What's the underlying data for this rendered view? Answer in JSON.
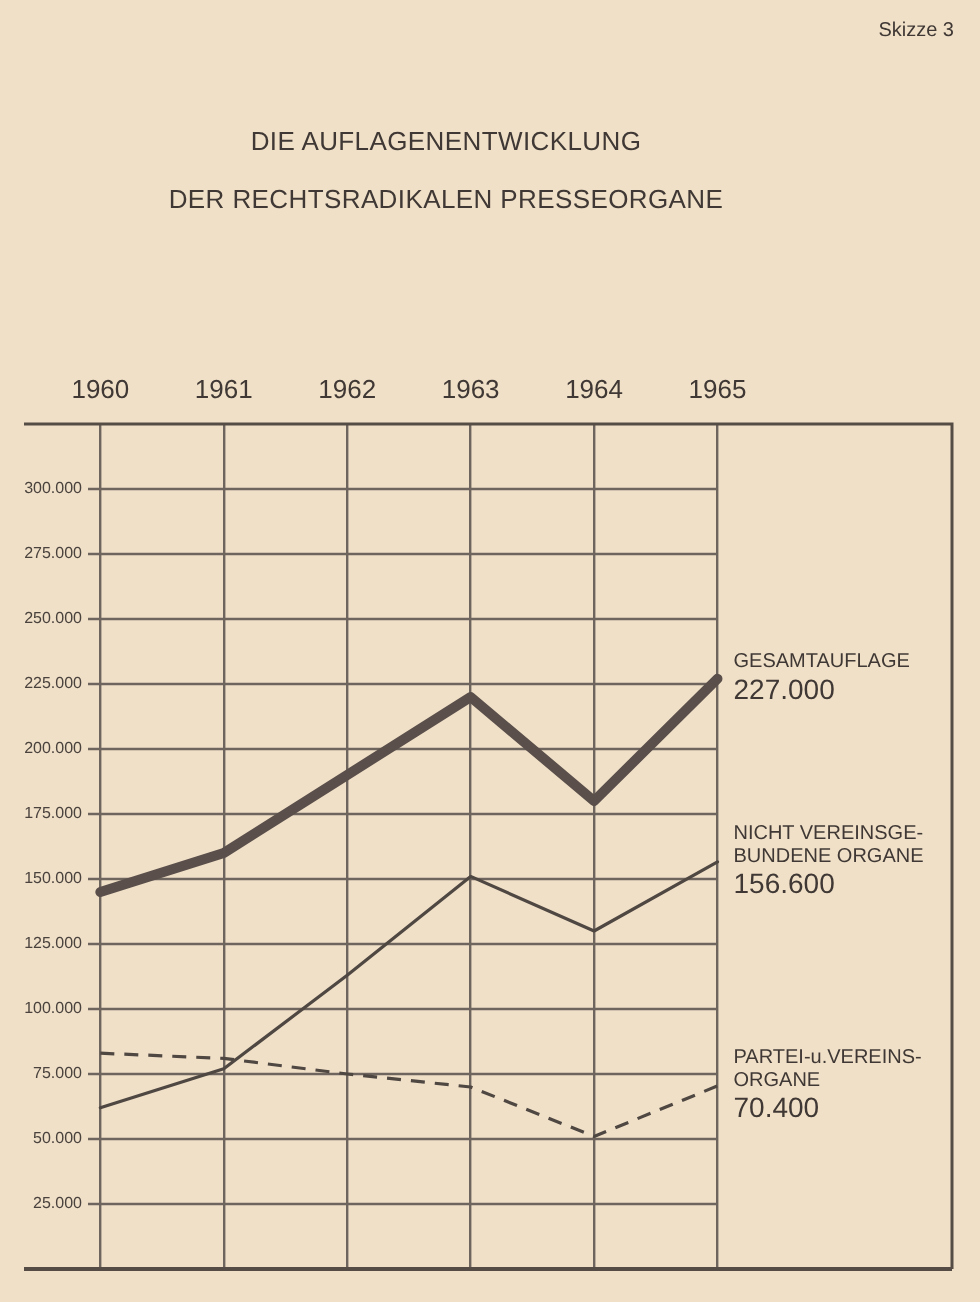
{
  "chart_data": {
    "type": "line",
    "title": "DIE AUFLAGENENTWICKLUNG",
    "subtitle": "DER RECHTSRADIKALEN PRESSEORGANE",
    "annotations": [
      "Skizze 3"
    ],
    "x": [
      1960,
      1961,
      1962,
      1963,
      1964,
      1965
    ],
    "xlim": [
      1959.9,
      1966.9
    ],
    "xticks": [
      1960,
      1961,
      1962,
      1963,
      1964,
      1965
    ],
    "ylim": [
      0,
      325000
    ],
    "yticks": [
      {
        "value": 25000,
        "label": "25.000"
      },
      {
        "value": 50000,
        "label": "50.000"
      },
      {
        "value": 75000,
        "label": "75.000"
      },
      {
        "value": 100000,
        "label": "100.000"
      },
      {
        "value": 125000,
        "label": "125.000"
      },
      {
        "value": 150000,
        "label": "150.000"
      },
      {
        "value": 175000,
        "label": "175.000"
      },
      {
        "value": 200000,
        "label": "200.000"
      },
      {
        "value": 225000,
        "label": "225.000"
      },
      {
        "value": 250000,
        "label": "250.000"
      },
      {
        "value": 275000,
        "label": "275.000"
      },
      {
        "value": 300000,
        "label": "300.000"
      }
    ],
    "grid": true,
    "marker": "none",
    "series": [
      {
        "name": "GESAMTAUFLAGE",
        "color": "#5a4f4a",
        "line_style": "solid",
        "values": [
          145000,
          160000,
          190000,
          220000,
          180000,
          227000
        ],
        "value_labels": [
          null,
          null,
          null,
          null,
          null,
          "227.000"
        ]
      },
      {
        "name": "NICHT VEREINSGE-BUNDENE ORGANE",
        "color": "#4f4742",
        "line_style": "solid",
        "values": [
          62000,
          77000,
          113000,
          151000,
          130000,
          156600
        ],
        "value_labels": [
          null,
          null,
          null,
          null,
          null,
          "156.600"
        ]
      },
      {
        "name": "PARTEI-u.VEREINS-ORGANE",
        "color": "#4f4742",
        "line_style": "dashed",
        "values": [
          83000,
          81000,
          75000,
          70000,
          51000,
          70400
        ],
        "value_labels": [
          null,
          null,
          null,
          null,
          null,
          "70.400"
        ]
      }
    ]
  }
}
